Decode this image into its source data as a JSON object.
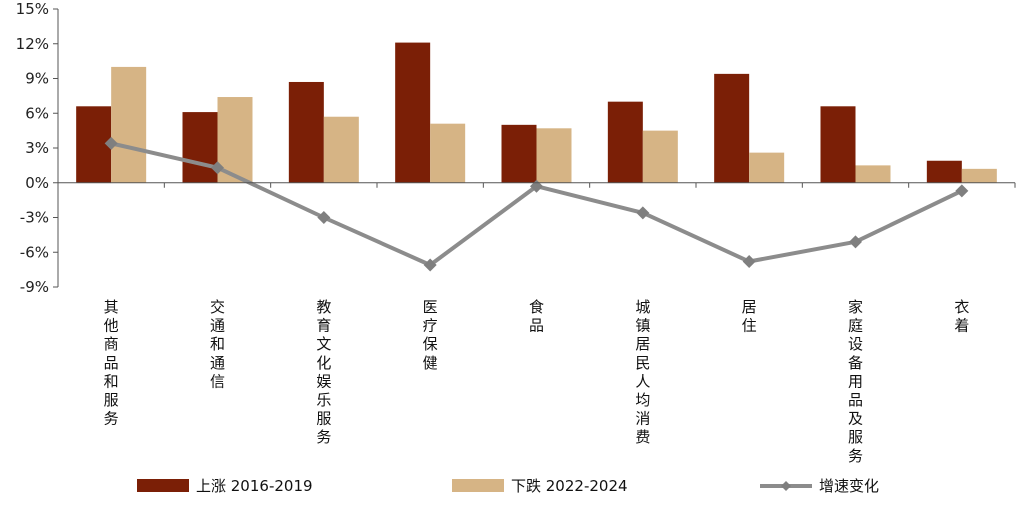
{
  "chart_data": {
    "type": "bar",
    "title": "",
    "xlabel": "",
    "ylabel": "",
    "ylim": [
      -9,
      15
    ],
    "yticks": [
      15,
      12,
      9,
      6,
      3,
      0,
      -3,
      -6,
      -9
    ],
    "ytick_labels": [
      "15%",
      "12%",
      "9%",
      "6%",
      "3%",
      "0%",
      "-3%",
      "-6%",
      "-9%"
    ],
    "categories": [
      "其他商品和服务",
      "交通和通信",
      "教育文化娱乐服务",
      "医疗保健",
      "食品",
      "城镇居民人均消费",
      "居住",
      "家庭设备用品及服务",
      "衣着"
    ],
    "series": [
      {
        "name": "上涨 2016-2019",
        "kind": "bar",
        "color": "#7B1F06",
        "values": [
          6.6,
          6.1,
          8.7,
          12.1,
          5.0,
          7.0,
          9.4,
          6.6,
          1.9
        ]
      },
      {
        "name": "下跌 2022-2024",
        "kind": "bar",
        "color": "#D6B485",
        "values": [
          10.0,
          7.4,
          5.7,
          5.1,
          4.7,
          4.5,
          2.6,
          1.5,
          1.2
        ]
      },
      {
        "name": "增速变化",
        "kind": "line",
        "color": "#8C8C8C",
        "values": [
          3.4,
          1.3,
          -3.0,
          -7.1,
          -0.3,
          -2.6,
          -6.8,
          -5.1,
          -0.7
        ]
      }
    ],
    "legend_position": "bottom"
  }
}
